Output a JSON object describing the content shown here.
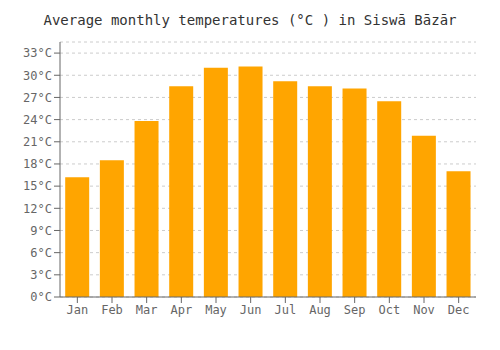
{
  "chart_data": {
    "type": "bar",
    "title": "Average monthly temperatures (°C ) in Siswā Bāzār",
    "categories": [
      "Jan",
      "Feb",
      "Mar",
      "Apr",
      "May",
      "Jun",
      "Jul",
      "Aug",
      "Sep",
      "Oct",
      "Nov",
      "Dec"
    ],
    "values": [
      16.2,
      18.5,
      23.8,
      28.5,
      31.0,
      31.2,
      29.2,
      28.5,
      28.2,
      26.5,
      21.8,
      17.0
    ],
    "color": "#FFA500",
    "ylim": [
      0,
      34.5
    ],
    "yticks": [
      {
        "value": 0,
        "label": "0°C"
      },
      {
        "value": 3,
        "label": "3°C"
      },
      {
        "value": 6,
        "label": "6°C"
      },
      {
        "value": 9,
        "label": "9°C"
      },
      {
        "value": 12,
        "label": "12°C"
      },
      {
        "value": 15,
        "label": "15°C"
      },
      {
        "value": 18,
        "label": "18°C"
      },
      {
        "value": 21,
        "label": "21°C"
      },
      {
        "value": 24,
        "label": "24°C"
      },
      {
        "value": 27,
        "label": "27°C"
      },
      {
        "value": 30,
        "label": "30°C"
      },
      {
        "value": 33,
        "label": "33°C"
      }
    ],
    "grid": true
  }
}
